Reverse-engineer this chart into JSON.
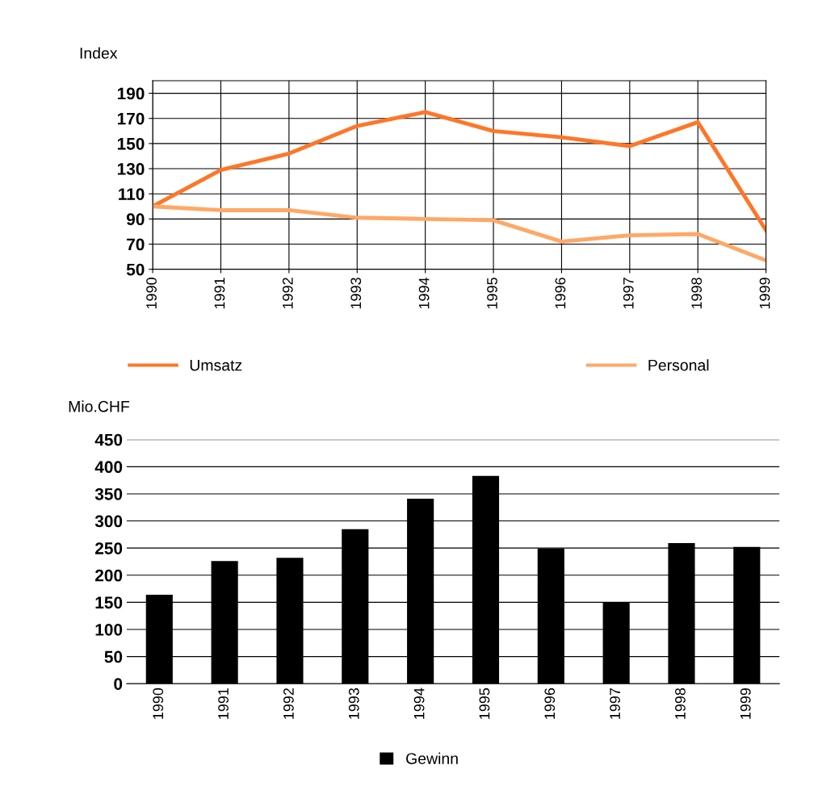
{
  "chart_data": [
    {
      "type": "line",
      "ylabel": "Index",
      "x": [
        1990,
        1991,
        1992,
        1993,
        1994,
        1995,
        1996,
        1997,
        1998,
        1999
      ],
      "xlim": [
        1990,
        1999
      ],
      "xticks": [
        1990,
        1991,
        1992,
        1993,
        1994,
        1995,
        1996,
        1997,
        1998,
        1999
      ],
      "ylim": [
        50,
        200
      ],
      "yticks": [
        50,
        70,
        90,
        110,
        130,
        150,
        170,
        190
      ],
      "grid": true,
      "legend": "bottom",
      "marker": "none",
      "line_style": "solid",
      "series": [
        {
          "name": "Umsatz",
          "color": "#ff7628",
          "values": [
            100,
            129,
            142,
            164,
            175,
            160,
            155,
            148,
            167,
            81
          ]
        },
        {
          "name": "Personal",
          "color": "#ffa866",
          "values": [
            100,
            97,
            97,
            91,
            90,
            89,
            72,
            77,
            78,
            57
          ]
        }
      ]
    },
    {
      "type": "bar",
      "ylabel": "Mio.CHF",
      "categories": [
        "1990",
        "1991",
        "1992",
        "1993",
        "1994",
        "1995",
        "1996",
        "1997",
        "1998",
        "1999"
      ],
      "ylim": [
        0,
        450
      ],
      "yticks": [
        0,
        50,
        100,
        150,
        200,
        250,
        300,
        350,
        400,
        450
      ],
      "grid": "y",
      "legend": "bottom",
      "series": [
        {
          "name": "Gewinn",
          "color": "#000000",
          "values": [
            164,
            226,
            232,
            285,
            341,
            383,
            249,
            150,
            259,
            252
          ]
        }
      ]
    }
  ]
}
